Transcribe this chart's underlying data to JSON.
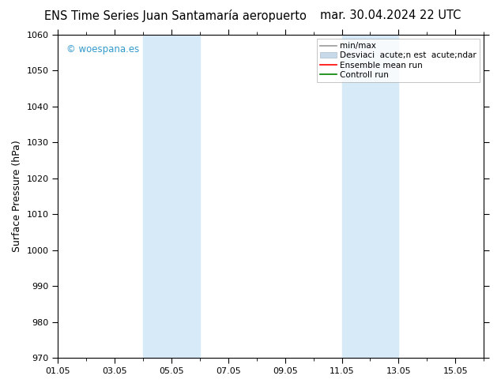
{
  "title_left": "ENS Time Series Juan Santamaría aeropuerto",
  "title_right": "mar. 30.04.2024 22 UTC",
  "ylabel": "Surface Pressure (hPa)",
  "ylim": [
    970,
    1060
  ],
  "yticks": [
    970,
    980,
    990,
    1000,
    1010,
    1020,
    1030,
    1040,
    1050,
    1060
  ],
  "xtick_labels": [
    "01.05",
    "03.05",
    "05.05",
    "07.05",
    "09.05",
    "11.05",
    "13.05",
    "15.05"
  ],
  "xtick_positions": [
    0,
    2,
    4,
    6,
    8,
    10,
    12,
    14
  ],
  "xlim": [
    0,
    15
  ],
  "shaded_regions": [
    {
      "xstart": 3.0,
      "xend": 5.0
    },
    {
      "xstart": 10.0,
      "xend": 12.0
    }
  ],
  "shade_color": "#d6eaf8",
  "watermark": "© woespana.es",
  "watermark_color": "#3399cc",
  "legend_line1": "min/max",
  "legend_line2": "Desviaci  acute;n est  acute;ndar",
  "legend_line3": "Ensemble mean run",
  "legend_line4": "Controll run",
  "background_color": "#ffffff",
  "title_fontsize": 10.5,
  "ylabel_fontsize": 9,
  "tick_fontsize": 8,
  "legend_fontsize": 7.5
}
